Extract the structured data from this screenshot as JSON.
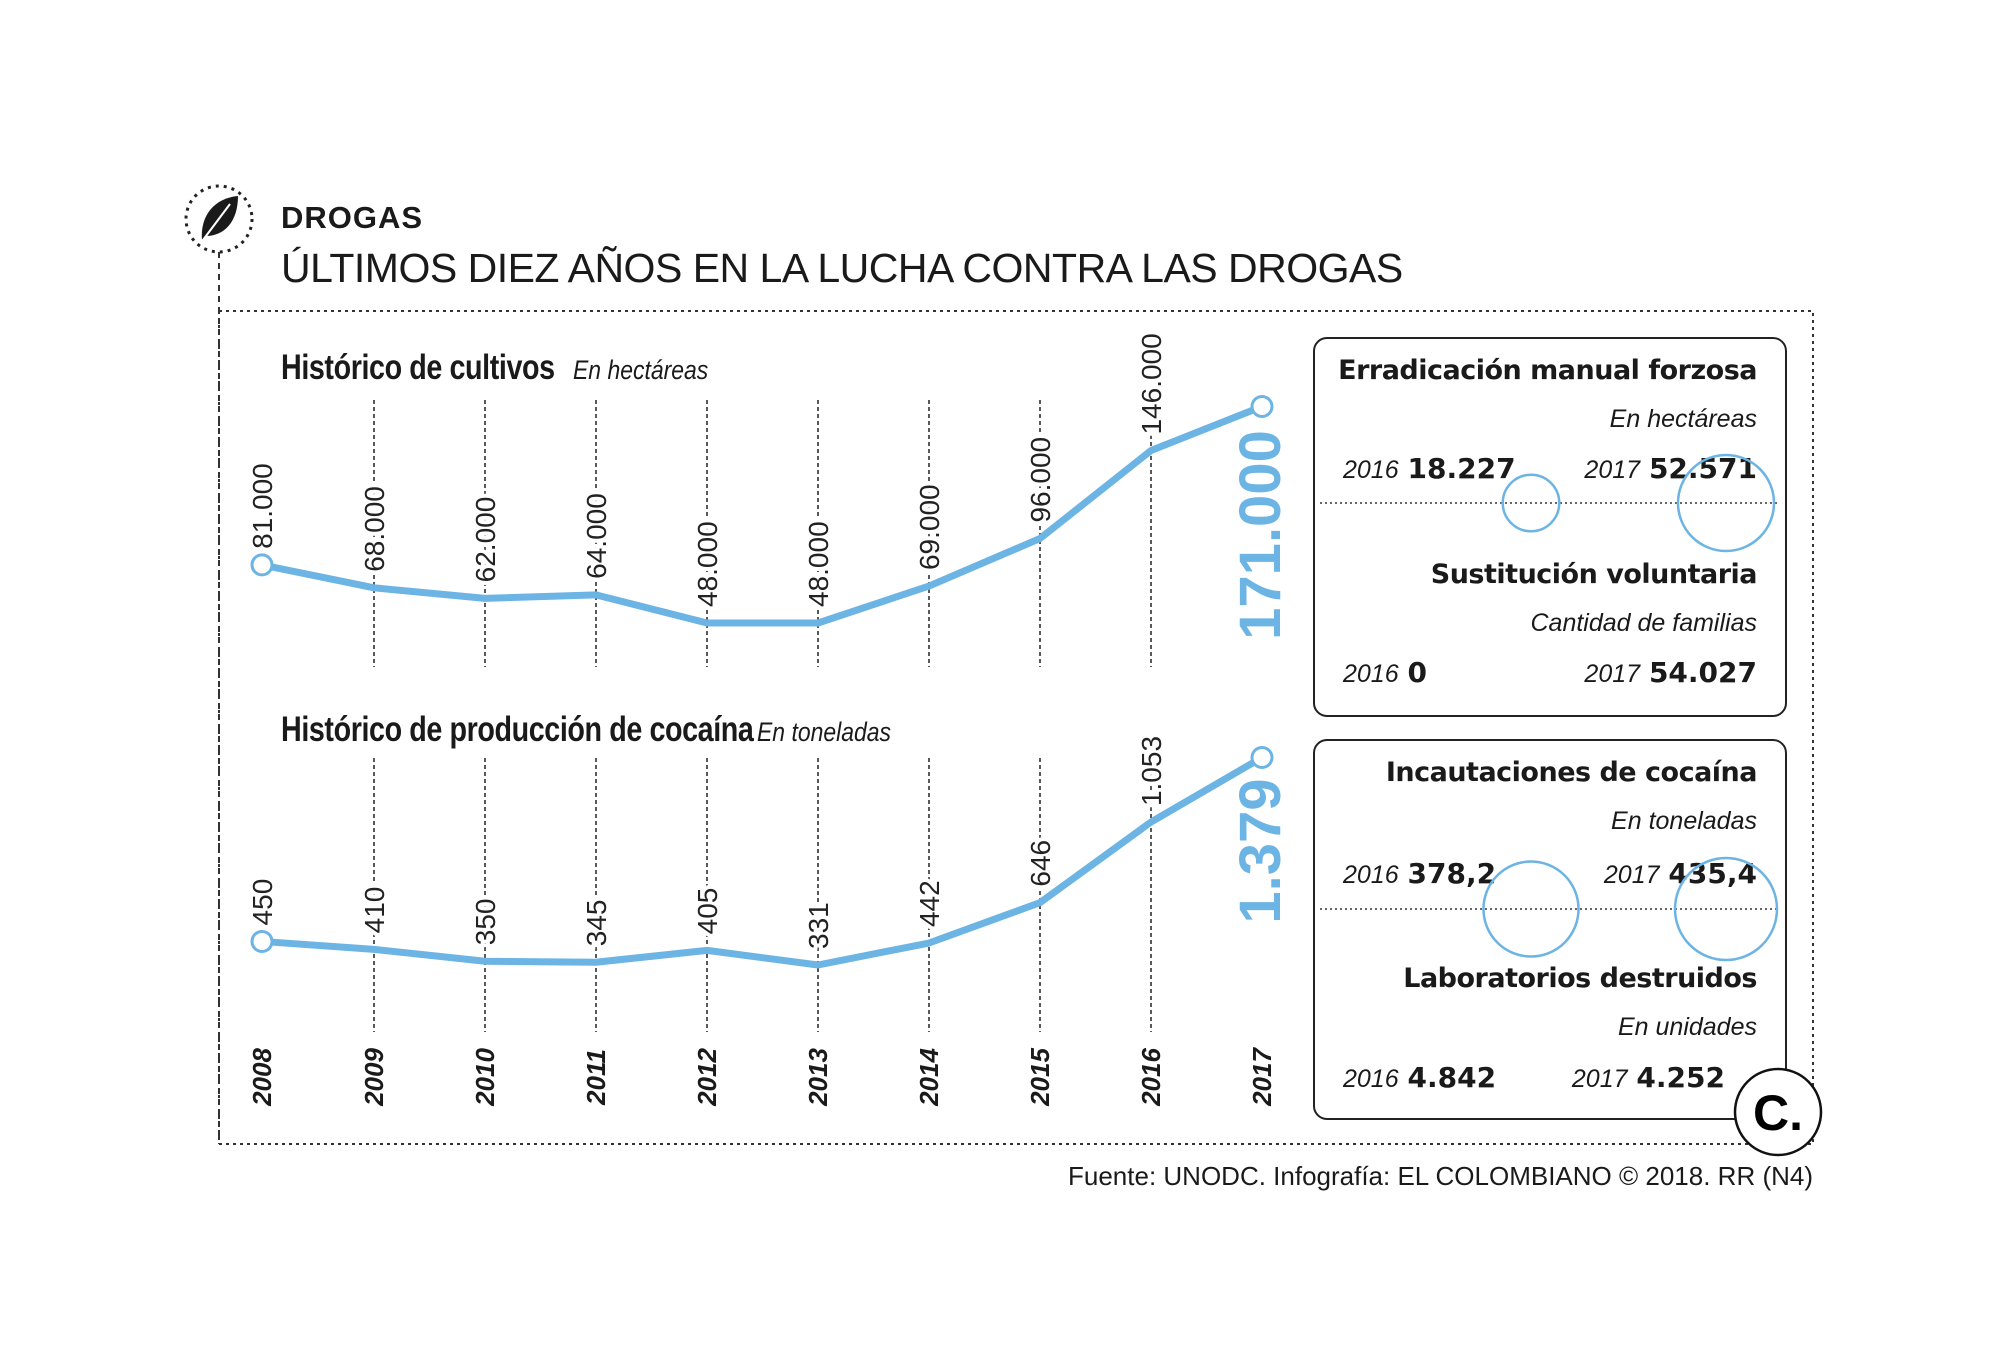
{
  "header": {
    "section": "DROGAS",
    "title": "ÚLTIMOS DIEZ AÑOS EN LA LUCHA CONTRA LAS DROGAS",
    "icon": "leaf-icon"
  },
  "chart_data": [
    {
      "type": "line",
      "title": "Histórico de cultivos",
      "unit": "En hectáreas",
      "x": [
        "2008",
        "2009",
        "2010",
        "2011",
        "2012",
        "2013",
        "2014",
        "2015",
        "2016",
        "2017"
      ],
      "values": [
        81000,
        68000,
        62000,
        64000,
        48000,
        48000,
        69000,
        96000,
        146000,
        171000
      ],
      "labels": [
        "81.000",
        "68.000",
        "62.000",
        "64.000",
        "48.000",
        "48.000",
        "69.000",
        "96.000",
        "146.000",
        "171.000"
      ],
      "color": "#6cb4e4"
    },
    {
      "type": "line",
      "title": "Histórico de producción de cocaína",
      "unit": "En toneladas",
      "x": [
        "2008",
        "2009",
        "2010",
        "2011",
        "2012",
        "2013",
        "2014",
        "2015",
        "2016",
        "2017"
      ],
      "values": [
        450,
        410,
        350,
        345,
        405,
        331,
        442,
        646,
        1053,
        1379
      ],
      "labels": [
        "450",
        "410",
        "350",
        "345",
        "405",
        "331",
        "442",
        "646",
        "1.053",
        "1.379"
      ],
      "color": "#6cb4e4"
    }
  ],
  "panels": [
    {
      "sections": [
        {
          "title": "Erradicación manual forzosa",
          "unit": "En hectáreas",
          "y1": "2016",
          "v1": "18.227",
          "n1": 18227,
          "y2": "2017",
          "v2": "52.571",
          "n2": 52571,
          "bubbles": true
        },
        {
          "title": "Sustitución voluntaria",
          "unit": "Cantidad de familias",
          "y1": "2016",
          "v1": "0",
          "y2": "2017",
          "v2": "54.027"
        }
      ]
    },
    {
      "sections": [
        {
          "title": "Incautaciones de cocaína",
          "unit": "En toneladas",
          "y1": "2016",
          "v1": "378,2",
          "n1": 378.2,
          "y2": "2017",
          "v2": "435,4",
          "n2": 435.4,
          "bubbles": true
        },
        {
          "title": "Laboratorios destruidos",
          "unit": "En unidades",
          "y1": "2016",
          "v1": "4.842",
          "y2": "2017",
          "v2": "4.252"
        }
      ]
    }
  ],
  "footer": "Fuente: UNODC. Infografía: EL COLOMBIANO © 2018. RR (N4)",
  "logo": "C."
}
